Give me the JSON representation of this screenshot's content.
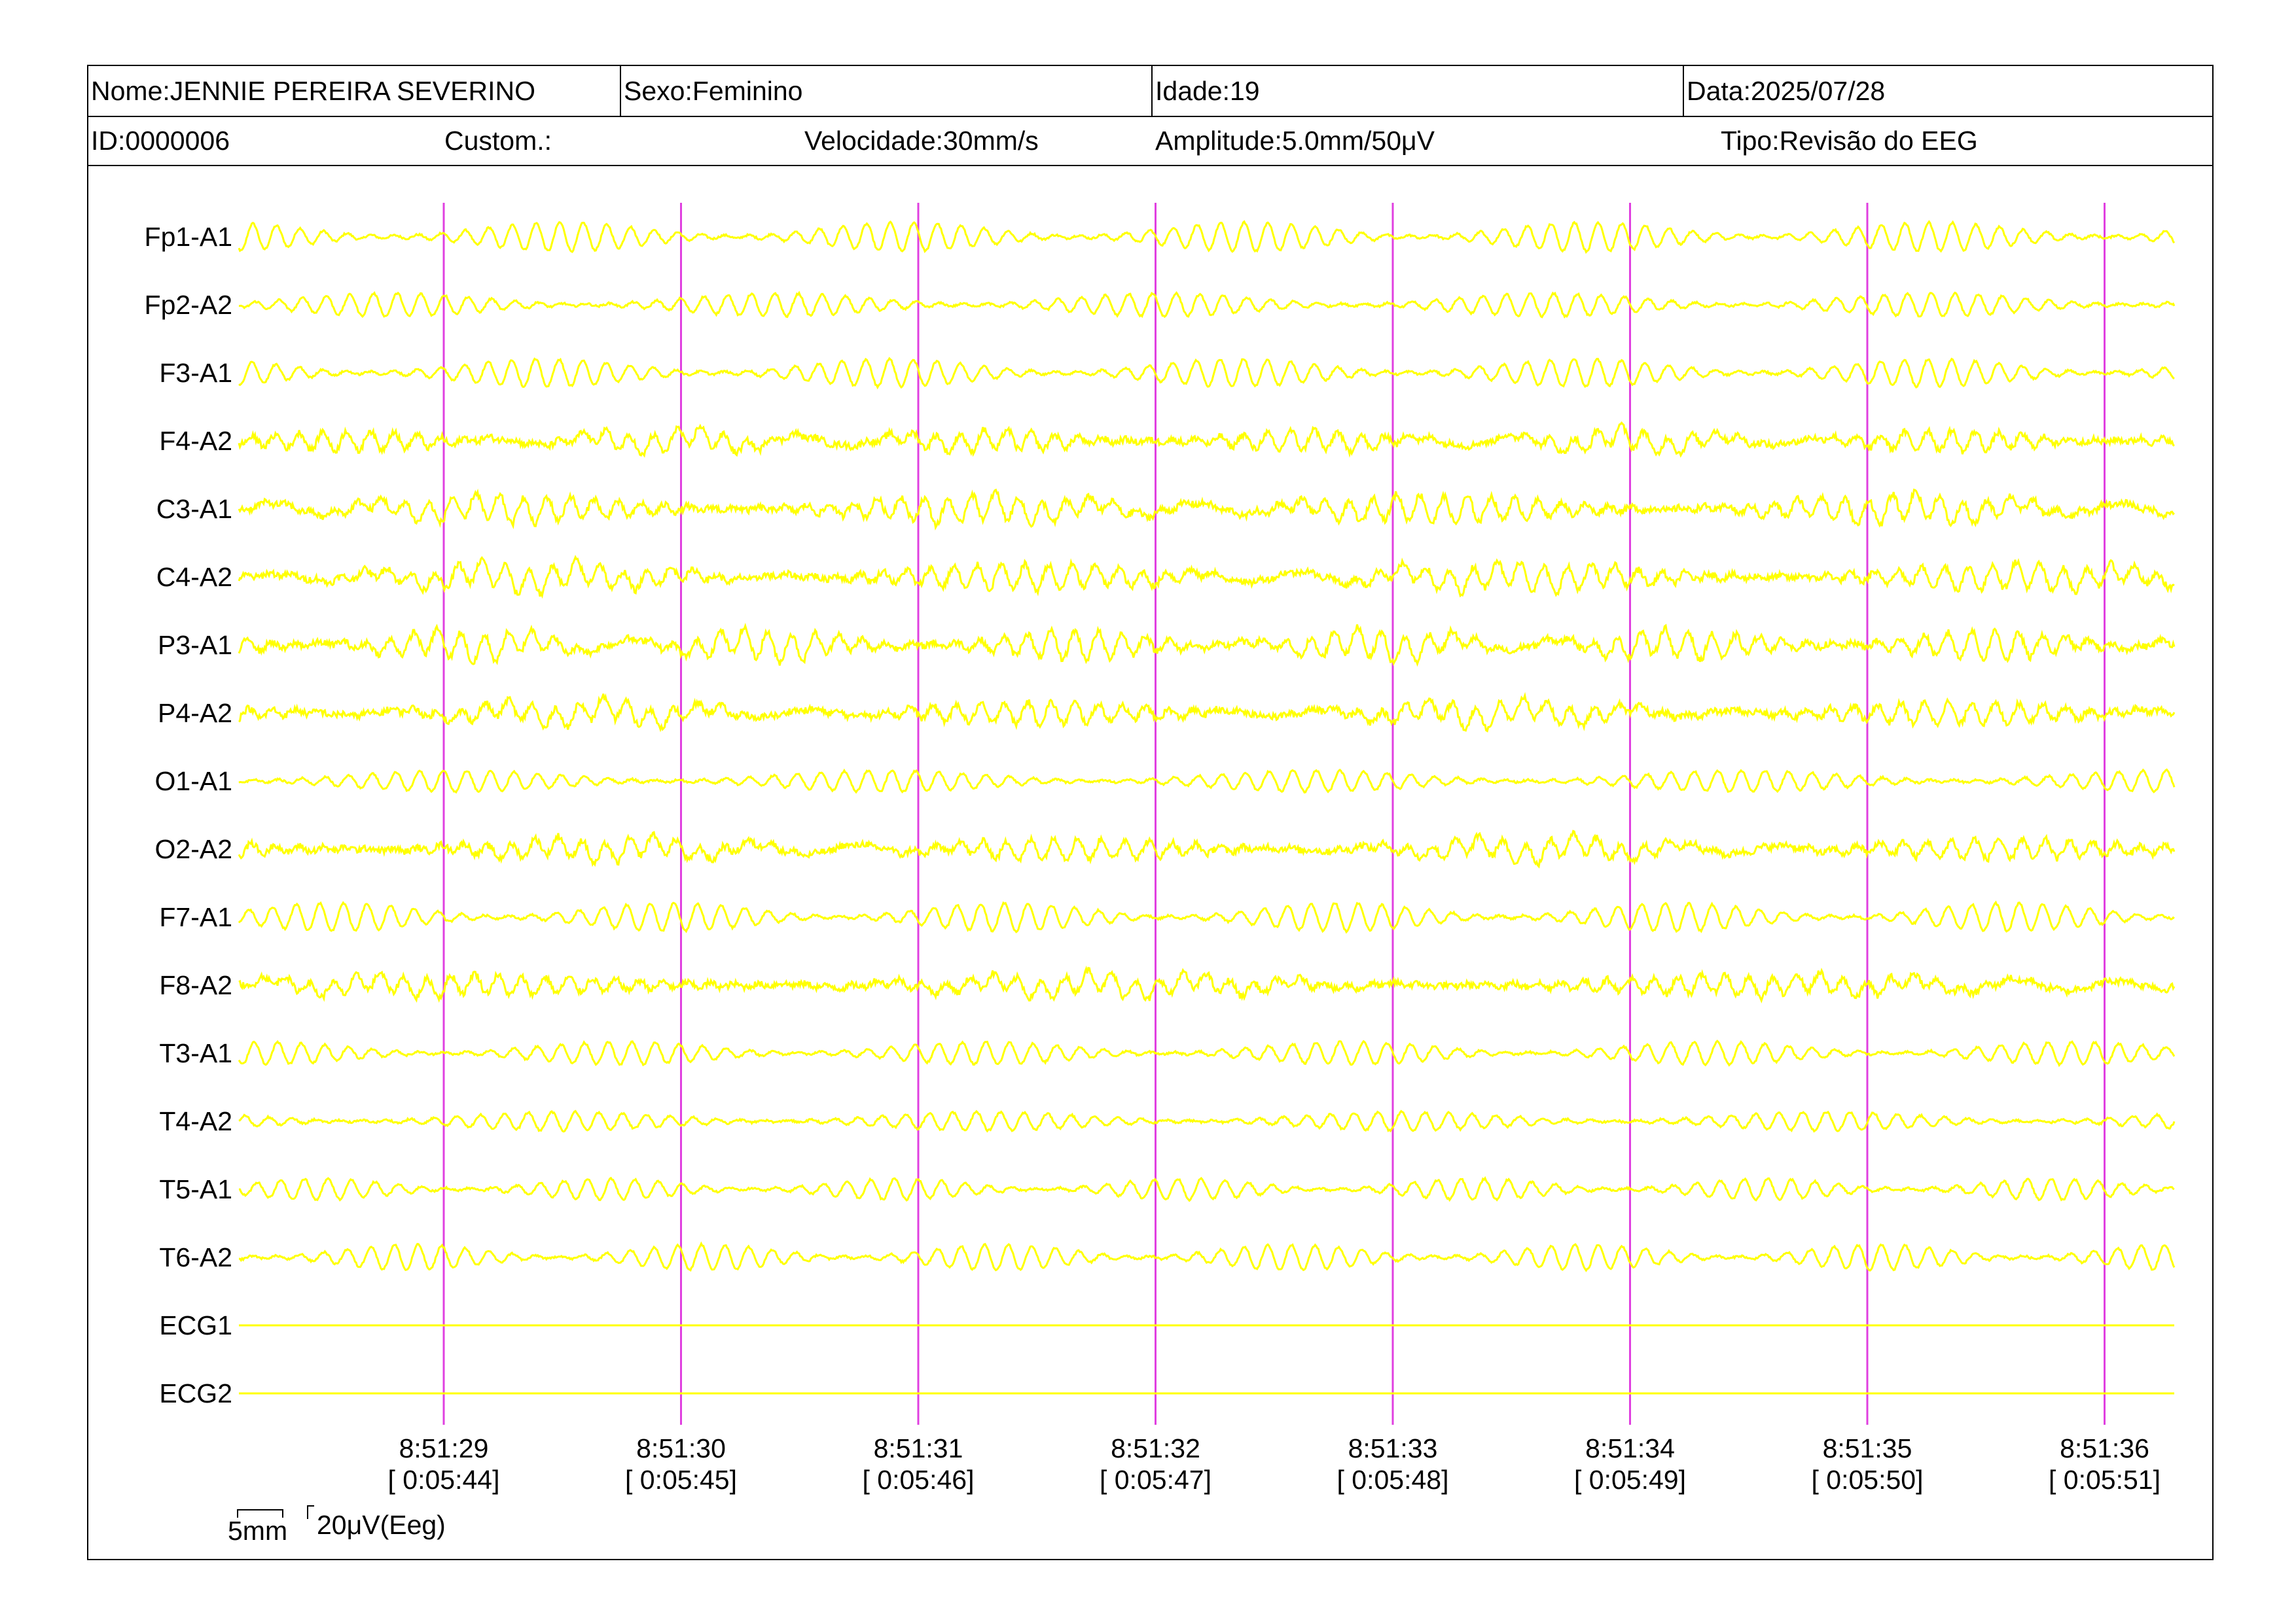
{
  "header": {
    "name": "Nome:JENNIE PEREIRA SEVERINO",
    "sex": "Sexo:Feminino",
    "age": "Idade:19",
    "date": "Data:2025/07/28",
    "id": "ID:0000006",
    "custom": "Custom.:",
    "speed": "Velocidade:30mm/s",
    "amplitude": "Amplitude:5.0mm/50μV",
    "type": "Tipo:Revisão do EEG"
  },
  "scale": {
    "time_label": "5mm",
    "amp_label": "20μV(Eeg)"
  },
  "colors": {
    "trace": "#ffff00",
    "marker": "#e040e0",
    "text": "#000000",
    "background": "#ffffff"
  },
  "chart_data": {
    "type": "line",
    "title": "",
    "channels": [
      "Fp1-A1",
      "Fp2-A2",
      "F3-A1",
      "F4-A2",
      "C3-A1",
      "C4-A2",
      "P3-A1",
      "P4-A2",
      "O1-A1",
      "O2-A2",
      "F7-A1",
      "F8-A2",
      "T3-A1",
      "T4-A2",
      "T5-A1",
      "T6-A2",
      "ECG1",
      "ECG2"
    ],
    "x_ticks": [
      {
        "time": "8:51:29",
        "elapsed": "[ 0:05:44]"
      },
      {
        "time": "8:51:30",
        "elapsed": "[ 0:05:45]"
      },
      {
        "time": "8:51:31",
        "elapsed": "[ 0:05:46]"
      },
      {
        "time": "8:51:32",
        "elapsed": "[ 0:05:47]"
      },
      {
        "time": "8:51:33",
        "elapsed": "[ 0:05:48]"
      },
      {
        "time": "8:51:34",
        "elapsed": "[ 0:05:49]"
      },
      {
        "time": "8:51:35",
        "elapsed": "[ 0:05:50]"
      },
      {
        "time": "8:51:36",
        "elapsed": "[ 0:05:51]"
      }
    ],
    "xlim_seconds": [
      0,
      8.2
    ],
    "dominant_frequency_hz": 10,
    "ecg_flat": true,
    "grid": false
  }
}
